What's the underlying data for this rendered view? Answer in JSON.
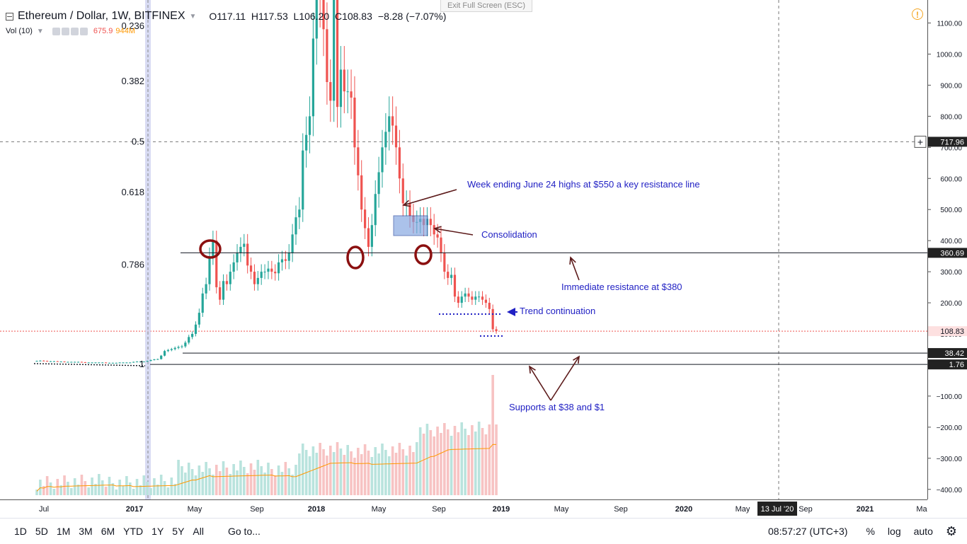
{
  "header": {
    "title": "Ethereum / Dollar, 1W, BITFINEX",
    "open_label": "O",
    "open": "117.11",
    "high_label": "H",
    "high": "117.53",
    "low_label": "L",
    "low": "106.20",
    "close_label": "C",
    "close": "108.83",
    "change": "−8.28 (−7.07%)",
    "exit_fullscreen": "Exit Full Screen (ESC)",
    "alert_icon": "!"
  },
  "volume": {
    "label": "Vol (10)",
    "value": "675.9",
    "ma_value": "944M"
  },
  "colors": {
    "up": "#26a69a",
    "down": "#ef5350",
    "annotation": "#2121c4",
    "marker": "#8b1010",
    "arrow": "#5c1a1a",
    "vol_ma": "#ff9800"
  },
  "chart_data": {
    "type": "candlestick",
    "symbol": "Ethereum / Dollar",
    "interval": "1W",
    "exchange": "BITFINEX",
    "price_scale": "log-style",
    "price_axis_ticks": [
      {
        "label": "1100.00",
        "value": 1100
      },
      {
        "label": "1000.00",
        "value": 1000
      },
      {
        "label": "900.00",
        "value": 900
      },
      {
        "label": "800.00",
        "value": 800
      },
      {
        "label": "700.00",
        "value": 700
      },
      {
        "label": "600.00",
        "value": 600
      },
      {
        "label": "500.00",
        "value": 500
      },
      {
        "label": "400.00",
        "value": 400
      },
      {
        "label": "300.00",
        "value": 300
      },
      {
        "label": "200.00",
        "value": 200
      },
      {
        "label": "100.00",
        "value": 100
      },
      {
        "label": "−100.00",
        "value": -100
      },
      {
        "label": "−200.00",
        "value": -200
      },
      {
        "label": "−300.00",
        "value": -300
      },
      {
        "label": "−400.00",
        "value": -400
      }
    ],
    "price_labels": [
      {
        "label": "717.96",
        "value": 717.96,
        "style": "dark",
        "plus": "+"
      },
      {
        "label": "360.69",
        "value": 360.69,
        "style": "dark"
      },
      {
        "label": "108.83",
        "value": 108.83,
        "style": "red"
      },
      {
        "label": "38.42",
        "value": 38.42,
        "style": "dark"
      },
      {
        "label": "1.76",
        "value": 1.76,
        "style": "dark"
      }
    ],
    "time_axis": [
      "Jul",
      "2017",
      "May",
      "Sep",
      "2018",
      "May",
      "Sep",
      "2019",
      "May",
      "Sep",
      "2020",
      "May",
      "13 Jul '20",
      "Sep",
      "2021",
      "Ma"
    ],
    "time_axis_bold": [
      "2017",
      "2018",
      "2019",
      "2020",
      "2021"
    ],
    "crosshair_time": "13 Jul '20",
    "crosshair_price": 717.96,
    "fib_levels": [
      {
        "label": "0.236",
        "price": 1090
      },
      {
        "label": "0.382",
        "price": 912
      },
      {
        "label": "0.5",
        "price": 717.96
      },
      {
        "label": "0.618",
        "price": 555
      },
      {
        "label": "0.786",
        "price": 322
      },
      {
        "label": "1",
        "price": 1.76
      }
    ],
    "horizontal_levels": [
      360.69,
      38.42,
      1.76
    ],
    "candles_note": "weekly OHLC, approx. June 2016 – Nov 2018",
    "closes": [
      13,
      14,
      13,
      12,
      12,
      12,
      11,
      11,
      10,
      10,
      10,
      10,
      10,
      9,
      8,
      8,
      8,
      8,
      8,
      8,
      7,
      7,
      7,
      7,
      8,
      8,
      8,
      8,
      10,
      11,
      11,
      11,
      13,
      16,
      18,
      19,
      30,
      45,
      48,
      51,
      55,
      58,
      60,
      72,
      90,
      100,
      130,
      168,
      230,
      260,
      350,
      400,
      250,
      210,
      270,
      260,
      300,
      330,
      360,
      380,
      390,
      320,
      300,
      260,
      280,
      300,
      300,
      310,
      300,
      295,
      330,
      340,
      335,
      360,
      420,
      475,
      500,
      690,
      740,
      800,
      1050,
      1250,
      1180,
      1080,
      910,
      850,
      1200,
      830,
      950,
      880,
      880,
      860,
      700,
      610,
      500,
      440,
      380,
      450,
      550,
      620,
      700,
      750,
      800,
      770,
      700,
      600,
      520,
      520,
      480,
      460,
      460,
      470,
      450,
      470,
      450,
      420,
      410,
      360,
      300,
      280,
      290,
      220,
      200,
      220,
      230,
      220,
      210,
      220,
      220,
      210,
      200,
      180,
      115,
      109
    ],
    "volume_note": "volume histogram with 10-period MA overlay"
  },
  "annotations": {
    "june_highs": "Week ending June 24 highs at $550 a key resistance line",
    "consolidation": "Consolidation",
    "immediate_resistance": "Immediate resistance at $380",
    "trend_continuation": "Trend continuation",
    "supports": "Supports at $38 and $1"
  },
  "toolbar": {
    "timeframes": [
      "1D",
      "5D",
      "1M",
      "3M",
      "6M",
      "YTD",
      "1Y",
      "5Y",
      "All"
    ],
    "goto": "Go to...",
    "clock": "08:57:27 (UTC+3)",
    "percent": "%",
    "log": "log",
    "auto": "auto",
    "settings_icon": "gear-icon"
  }
}
